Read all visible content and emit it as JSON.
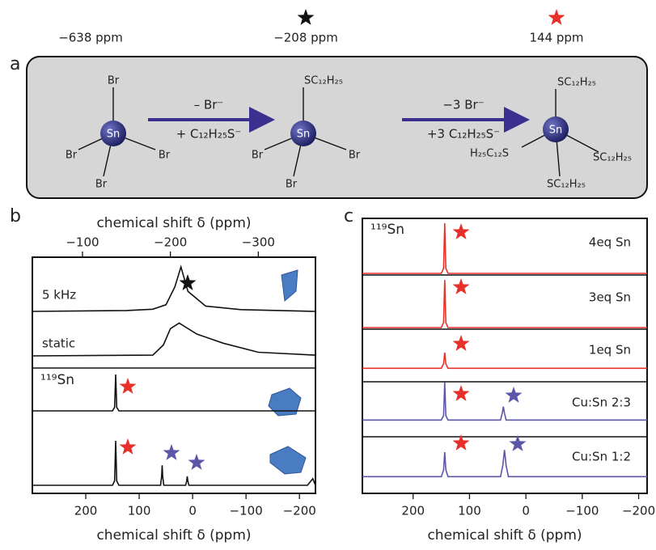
{
  "scheme": {
    "label": "a",
    "shifts": [
      "−638 ppm",
      "−208 ppm",
      "144 ppm"
    ],
    "molecules": [
      {
        "center": "Sn",
        "ligands": [
          "Br",
          "Br",
          "Br",
          "Br"
        ]
      },
      {
        "center": "Sn",
        "ligands": [
          "SC₁₂H₂₅",
          "Br",
          "Br",
          "Br"
        ]
      },
      {
        "center": "Sn",
        "ligands": [
          "SC₁₂H₂₅",
          "H₂₅C₁₂S",
          "SC₁₂H₂₅",
          "SC₁₂H₂₅"
        ]
      }
    ],
    "arrows": [
      {
        "top": "– Br⁻",
        "bottom": "+ C₁₂H₂₅S⁻"
      },
      {
        "top": "−3 Br⁻",
        "bottom": "+3 C₁₂H₂₅S⁻"
      }
    ]
  },
  "chart_data": [
    {
      "type": "line",
      "label": "b",
      "annotation": "¹¹⁹Sn",
      "xlabel": "chemical shift δ (ppm)",
      "xlim": [
        300,
        -230
      ],
      "xticks": [
        200,
        100,
        0,
        {
          "value": -100,
          "label": "−100"
        },
        {
          "value": -200,
          "label": "−200"
        }
      ],
      "x2label": "chemical shift δ (ppm)",
      "x2lim": [
        -43,
        -365
      ],
      "x2ticks": [
        {
          "value": -100,
          "label": "−100"
        },
        {
          "value": -200,
          "label": "−200"
        },
        {
          "value": -300,
          "label": "−300"
        }
      ],
      "series": [
        {
          "name": "5 kHz",
          "axis": "x2",
          "color": "#111111",
          "x": [
            -43,
            -150,
            -180,
            -195,
            -205,
            -212,
            -220,
            -240,
            -280,
            -365
          ],
          "values": [
            0,
            0.02,
            0.05,
            0.15,
            0.55,
            1,
            0.45,
            0.12,
            0.04,
            0
          ]
        },
        {
          "name": "static",
          "axis": "x2",
          "color": "#111111",
          "x": [
            -43,
            -180,
            -192,
            -200,
            -210,
            -230,
            -260,
            -300,
            -365
          ],
          "values": [
            0,
            0.02,
            0.3,
            0.75,
            0.9,
            0.6,
            0.35,
            0.1,
            0.02
          ]
        },
        {
          "color": "#111111",
          "x": [
            300,
            150,
            146,
            144,
            142,
            138,
            -230
          ],
          "values": [
            0,
            0,
            0.1,
            1,
            0.1,
            0,
            0
          ]
        },
        {
          "color": "#111111",
          "x": [
            300,
            150,
            146,
            144,
            142,
            138,
            60,
            58,
            57,
            56,
            54,
            13,
            11,
            10,
            9,
            7,
            -215,
            -225,
            -230
          ],
          "values": [
            0,
            0,
            0.1,
            1,
            0.1,
            0,
            0,
            0.2,
            0.45,
            0.2,
            0,
            0,
            0.1,
            0.2,
            0.1,
            0,
            0,
            0.15,
            0
          ]
        }
      ]
    },
    {
      "type": "line",
      "label": "c",
      "annotation": "¹¹⁹Sn",
      "xlabel": "chemical shift δ (ppm)",
      "xlim": [
        290,
        -215
      ],
      "xticks": [
        200,
        100,
        0,
        {
          "value": -100,
          "label": "−100"
        },
        {
          "value": -200,
          "label": "−200"
        }
      ],
      "series": [
        {
          "name": "4eq Sn",
          "color": "#e8302a",
          "x": [
            290,
            150,
            146,
            144,
            142,
            138,
            -215
          ],
          "values": [
            0,
            0,
            0.1,
            1,
            0.1,
            0,
            0
          ]
        },
        {
          "name": "3eq Sn",
          "color": "#e8302a",
          "x": [
            290,
            150,
            146,
            144,
            142,
            138,
            -215
          ],
          "values": [
            0,
            0,
            0.1,
            0.95,
            0.1,
            0,
            0
          ]
        },
        {
          "name": "1eq Sn",
          "color": "#e8302a",
          "x": [
            290,
            150,
            146,
            144,
            142,
            138,
            -215
          ],
          "values": [
            0.05,
            0.05,
            0.15,
            0.4,
            0.15,
            0.05,
            0.05
          ]
        },
        {
          "name": "Cu:Sn 2:3",
          "color": "#5b56a8",
          "x": [
            290,
            150,
            146,
            144,
            142,
            138,
            45,
            42,
            40,
            38,
            35,
            -215
          ],
          "values": [
            0.05,
            0.05,
            0.15,
            0.9,
            0.15,
            0.05,
            0.05,
            0.2,
            0.35,
            0.2,
            0.05,
            0.05
          ]
        },
        {
          "name": "Cu:Sn 1:2",
          "color": "#5b56a8",
          "x": [
            290,
            150,
            146,
            144,
            142,
            138,
            45,
            41,
            38,
            35,
            31,
            -215
          ],
          "values": [
            0.05,
            0.05,
            0.2,
            0.6,
            0.2,
            0.05,
            0.05,
            0.3,
            0.65,
            0.3,
            0.05,
            0.05
          ]
        }
      ]
    }
  ]
}
